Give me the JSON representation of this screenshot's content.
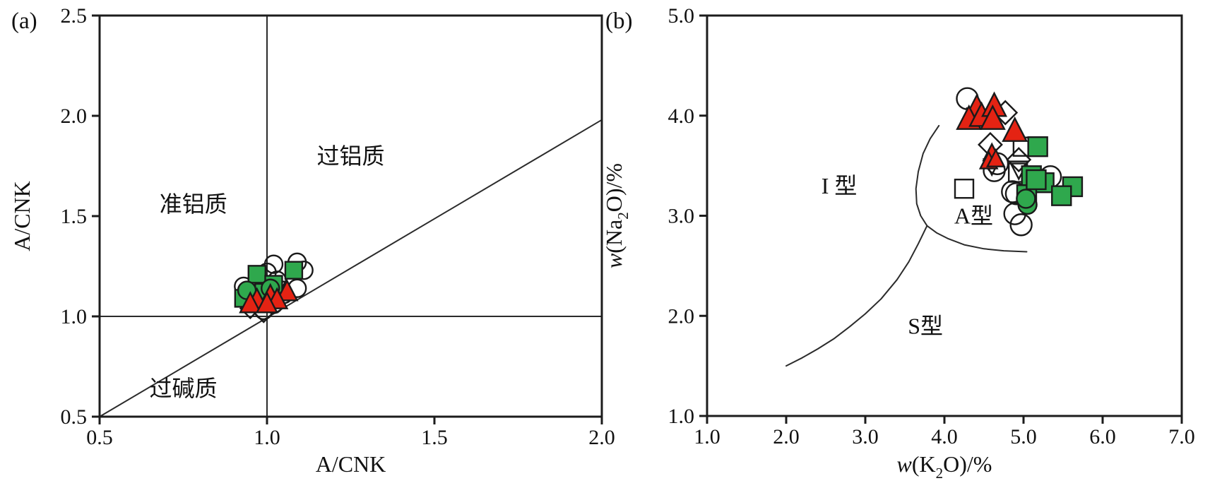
{
  "figure": {
    "background": "#ffffff",
    "marker_outline_color": "#1a1a1a",
    "green_fill": "#2fa84d",
    "red_fill": "#e42313",
    "line_color": "#2b2b2b"
  },
  "chart_data": [
    {
      "type": "scatter",
      "panel_label": "(a)",
      "xlabel_segments": [
        {
          "text": "A/CNK",
          "style": "normal"
        }
      ],
      "ylabel_segments": [
        {
          "text": "A/CNK",
          "style": "normal"
        }
      ],
      "xlim": [
        0.5,
        2.0
      ],
      "ylim": [
        0.5,
        2.5
      ],
      "xticks": {
        "values": [
          0.5,
          1.0,
          1.5,
          2.0
        ],
        "labels": [
          "0.5",
          "1.0",
          "1.5",
          "2.0"
        ]
      },
      "yticks": {
        "values": [
          0.5,
          1.0,
          1.5,
          2.0,
          2.5
        ],
        "labels": [
          "0.5",
          "1.0",
          "1.5",
          "2.0",
          "2.5"
        ]
      },
      "grid": false,
      "legend": "none",
      "region_labels": [
        {
          "text": "准铝质",
          "x": 0.78,
          "y": 1.56
        },
        {
          "text": "过铝质",
          "x": 1.25,
          "y": 1.8
        },
        {
          "text": "过碱质",
          "x": 0.75,
          "y": 0.64
        }
      ],
      "lines": [
        {
          "name": "boundary-x-equals-1",
          "points": [
            [
              1.0,
              0.5
            ],
            [
              1.0,
              2.5
            ]
          ]
        },
        {
          "name": "boundary-y-equals-1",
          "points": [
            [
              0.5,
              1.0
            ],
            [
              2.0,
              1.0
            ]
          ]
        },
        {
          "name": "boundary-diagonal",
          "points": [
            [
              0.5,
              0.5
            ],
            [
              2.0,
              1.98
            ]
          ]
        }
      ],
      "series": [
        {
          "name": "open-circle",
          "marker": "circle",
          "fill": "none",
          "stroke": "#1a1a1a",
          "size": 12.5,
          "points": [
            [
              1.02,
              1.26
            ],
            [
              1.09,
              1.27
            ],
            [
              1.11,
              1.23
            ],
            [
              1.0,
              1.22
            ],
            [
              0.93,
              1.15
            ],
            [
              1.09,
              1.14
            ],
            [
              1.03,
              1.18
            ],
            [
              1.02,
              1.06
            ],
            [
              0.99,
              1.03
            ],
            [
              1.05,
              1.11
            ]
          ]
        },
        {
          "name": "open-diamond",
          "marker": "diamond",
          "fill": "none",
          "stroke": "#1a1a1a",
          "size": 11,
          "points": [
            [
              0.95,
              1.04
            ],
            [
              0.99,
              1.02
            ],
            [
              1.01,
              1.13
            ],
            [
              0.97,
              1.12
            ]
          ]
        },
        {
          "name": "open-inverted-triangle",
          "marker": "triangle-down",
          "fill": "none",
          "stroke": "#1a1a1a",
          "size": 10,
          "points": [
            [
              1.0,
              1.12
            ],
            [
              1.03,
              1.14
            ]
          ]
        },
        {
          "name": "green-square",
          "marker": "square",
          "fill": "#2fa84d",
          "stroke": "#1a1a1a",
          "size": 12,
          "points": [
            [
              0.97,
              1.21
            ],
            [
              1.08,
              1.23
            ],
            [
              1.02,
              1.16
            ],
            [
              0.93,
              1.09
            ],
            [
              0.99,
              1.12
            ]
          ]
        },
        {
          "name": "green-circle",
          "marker": "circle",
          "fill": "#2fa84d",
          "stroke": "#1a1a1a",
          "size": 12.5,
          "points": [
            [
              0.94,
              1.13
            ],
            [
              1.01,
              1.14
            ]
          ]
        },
        {
          "name": "red-triangle",
          "marker": "triangle-up",
          "fill": "#e42313",
          "stroke": "#1a1a1a",
          "size": 12,
          "points": [
            [
              1.06,
              1.12
            ],
            [
              1.01,
              1.1
            ],
            [
              0.97,
              1.08
            ],
            [
              0.95,
              1.06
            ],
            [
              1.03,
              1.08
            ],
            [
              1.0,
              1.06
            ]
          ]
        }
      ]
    },
    {
      "type": "scatter",
      "panel_label": "(b)",
      "xlabel_segments": [
        {
          "text": "w",
          "style": "italic"
        },
        {
          "text": "(K",
          "style": "normal"
        },
        {
          "text": "2",
          "style": "sub"
        },
        {
          "text": "O)/%",
          "style": "normal"
        }
      ],
      "ylabel_segments": [
        {
          "text": "w",
          "style": "italic"
        },
        {
          "text": "(Na",
          "style": "normal"
        },
        {
          "text": "2",
          "style": "sub"
        },
        {
          "text": "O)/%",
          "style": "normal"
        }
      ],
      "xlim": [
        1.0,
        7.0
      ],
      "ylim": [
        1.0,
        5.0
      ],
      "xticks": {
        "values": [
          1.0,
          2.0,
          3.0,
          4.0,
          5.0,
          6.0,
          7.0
        ],
        "labels": [
          "1.0",
          "2.0",
          "3.0",
          "4.0",
          "5.0",
          "6.0",
          "7.0"
        ]
      },
      "yticks": {
        "values": [
          1.0,
          2.0,
          3.0,
          4.0,
          5.0
        ],
        "labels": [
          "1.0",
          "2.0",
          "3.0",
          "4.0",
          "5.0"
        ]
      },
      "grid": false,
      "legend": "none",
      "region_labels": [
        {
          "text": "I 型",
          "x": 2.67,
          "y": 3.3
        },
        {
          "text": "A型",
          "x": 4.37,
          "y": 3.0
        },
        {
          "text": "S型",
          "x": 3.76,
          "y": 1.9
        }
      ],
      "lines": [
        {
          "name": "s-type-boundary-curve",
          "points": [
            [
              2.0,
              1.5
            ],
            [
              2.2,
              1.58
            ],
            [
              2.4,
              1.67
            ],
            [
              2.6,
              1.77
            ],
            [
              2.8,
              1.89
            ],
            [
              3.0,
              2.02
            ],
            [
              3.2,
              2.17
            ],
            [
              3.4,
              2.36
            ],
            [
              3.55,
              2.54
            ],
            [
              3.67,
              2.72
            ],
            [
              3.78,
              2.9
            ]
          ]
        },
        {
          "name": "i-a-type-boundary-curve",
          "points": [
            [
              3.78,
              2.9
            ],
            [
              3.7,
              3.0
            ],
            [
              3.65,
              3.12
            ],
            [
              3.64,
              3.27
            ],
            [
              3.67,
              3.44
            ],
            [
              3.73,
              3.62
            ],
            [
              3.82,
              3.77
            ],
            [
              3.93,
              3.9
            ]
          ]
        },
        {
          "name": "a-type-bottom-boundary-curve",
          "points": [
            [
              3.78,
              2.9
            ],
            [
              3.9,
              2.83
            ],
            [
              4.05,
              2.77
            ],
            [
              4.25,
              2.71
            ],
            [
              4.5,
              2.67
            ],
            [
              4.75,
              2.65
            ],
            [
              5.04,
              2.64
            ]
          ]
        }
      ],
      "series": [
        {
          "name": "open-circle",
          "marker": "circle",
          "fill": "none",
          "stroke": "#1a1a1a",
          "size": 15,
          "points": [
            [
              4.29,
              4.17
            ],
            [
              4.63,
              3.45
            ],
            [
              4.67,
              3.52
            ],
            [
              4.86,
              3.24
            ],
            [
              5.34,
              3.39
            ],
            [
              4.89,
              3.02
            ],
            [
              4.97,
              2.91
            ],
            [
              4.91,
              3.22
            ]
          ]
        },
        {
          "name": "open-square",
          "marker": "square",
          "fill": "none",
          "stroke": "#1a1a1a",
          "size": 13,
          "points": [
            [
              4.25,
              3.27
            ],
            [
              4.99,
              3.69
            ],
            [
              4.93,
              3.43
            ]
          ]
        },
        {
          "name": "open-diamond",
          "marker": "diamond",
          "fill": "none",
          "stroke": "#1a1a1a",
          "size": 13,
          "points": [
            [
              4.77,
              4.03
            ],
            [
              4.58,
              3.71
            ],
            [
              4.94,
              3.56
            ]
          ]
        },
        {
          "name": "open-inverted-triangle",
          "marker": "triangle-down",
          "fill": "none",
          "stroke": "#1a1a1a",
          "size": 12,
          "points": [
            [
              4.39,
              4.01,
              0.8
            ],
            [
              4.94,
              3.47,
              0.9
            ],
            [
              4.6,
              3.5,
              0.8
            ]
          ]
        },
        {
          "name": "green-square",
          "marker": "square",
          "fill": "#2fa84d",
          "stroke": "#1a1a1a",
          "size": 13.5,
          "points": [
            [
              5.18,
              3.69
            ],
            [
              5.1,
              3.4
            ],
            [
              5.26,
              3.33
            ],
            [
              5.62,
              3.29
            ],
            [
              5.48,
              3.2
            ],
            [
              5.04,
              3.21
            ],
            [
              5.16,
              3.36
            ]
          ]
        },
        {
          "name": "green-circle",
          "marker": "circle",
          "fill": "#2fa84d",
          "stroke": "#1a1a1a",
          "size": 13,
          "points": [
            [
              5.05,
              3.11
            ],
            [
              5.03,
              3.17
            ]
          ]
        },
        {
          "name": "red-triangle",
          "marker": "triangle-up",
          "fill": "#e42313",
          "stroke": "#1a1a1a",
          "size": 14,
          "points": [
            [
              4.41,
              4.07
            ],
            [
              4.31,
              3.96
            ],
            [
              4.47,
              3.99
            ],
            [
              4.63,
              4.09
            ],
            [
              4.61,
              3.96
            ],
            [
              4.89,
              3.84
            ],
            [
              4.6,
              3.62,
              0.72
            ],
            [
              4.56,
              3.54,
              0.72
            ],
            [
              4.65,
              3.56,
              0.72
            ]
          ]
        }
      ]
    }
  ]
}
